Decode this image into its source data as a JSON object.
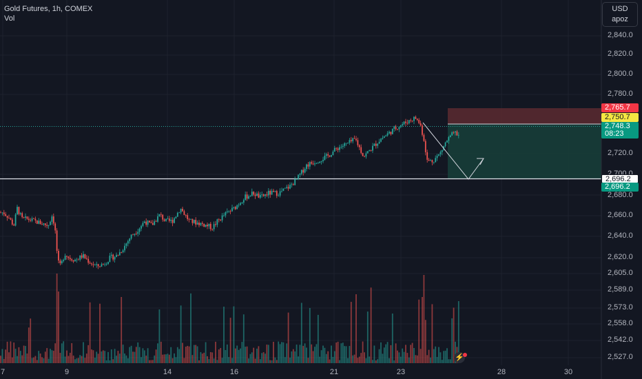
{
  "legend": {
    "symbol_line": "Gold Futures, 1h, COMEX",
    "indicator": "Vol"
  },
  "price_scale": {
    "currency": "USD",
    "unit": "apoz"
  },
  "y_labels": [
    "2,840.0",
    "2,820.0",
    "2,800.0",
    "2,780.0",
    "2,720.0",
    "2,700.0",
    "2,680.0",
    "2,660.0",
    "2,640.0",
    "2,620.0",
    "2,605.0",
    "2,589.0",
    "2,573.0",
    "2,558.0",
    "2,542.0",
    "2,527.0"
  ],
  "x_labels": [
    "7",
    "9",
    "14",
    "16",
    "21",
    "23",
    "28",
    "30"
  ],
  "tags": {
    "stop_loss": "2,765.7",
    "entry": "2,750.7",
    "last_price": "2,748.3",
    "countdown": "08:23",
    "target_line": "2,696.2",
    "target": "2,696.2"
  },
  "colors": {
    "background": "#131722",
    "up": "#26a69a",
    "down": "#ef5350",
    "stop_zone": "#5c2a30",
    "target_zone": "#173f3a",
    "entry_tag": "#f5e642",
    "stop_tag": "#f23645",
    "target_tag": "#089981"
  },
  "icons": {
    "alert": "lightning-icon"
  },
  "chart_data": {
    "type": "candlestick",
    "interval": "1h",
    "ylim": [
      2620,
      2846
    ],
    "y_ticks": [
      2620,
      2640,
      2660,
      2680,
      2700,
      2720,
      2780,
      2800,
      2820,
      2840
    ],
    "last_price": 2748.3,
    "horizontal_line": 2696.2,
    "position": {
      "entry": 2750.7,
      "stop": 2765.7,
      "target": 2696.2
    },
    "price_path": [
      {
        "x": 0,
        "y": 2676
      },
      {
        "x": 5,
        "y": 2676
      },
      {
        "x": 12,
        "y": 2672
      },
      {
        "x": 20,
        "y": 2664
      },
      {
        "x": 25,
        "y": 2680
      },
      {
        "x": 32,
        "y": 2670
      },
      {
        "x": 40,
        "y": 2670
      },
      {
        "x": 50,
        "y": 2668
      },
      {
        "x": 60,
        "y": 2666
      },
      {
        "x": 70,
        "y": 2664
      },
      {
        "x": 76,
        "y": 2674
      },
      {
        "x": 80,
        "y": 2660
      },
      {
        "x": 84,
        "y": 2630
      },
      {
        "x": 88,
        "y": 2626
      },
      {
        "x": 94,
        "y": 2638
      },
      {
        "x": 100,
        "y": 2634
      },
      {
        "x": 110,
        "y": 2632
      },
      {
        "x": 120,
        "y": 2636
      },
      {
        "x": 130,
        "y": 2630
      },
      {
        "x": 140,
        "y": 2626
      },
      {
        "x": 150,
        "y": 2628
      },
      {
        "x": 160,
        "y": 2634
      },
      {
        "x": 170,
        "y": 2636
      },
      {
        "x": 180,
        "y": 2644
      },
      {
        "x": 190,
        "y": 2654
      },
      {
        "x": 200,
        "y": 2660
      },
      {
        "x": 210,
        "y": 2668
      },
      {
        "x": 220,
        "y": 2664
      },
      {
        "x": 232,
        "y": 2674
      },
      {
        "x": 240,
        "y": 2668
      },
      {
        "x": 250,
        "y": 2668
      },
      {
        "x": 262,
        "y": 2680
      },
      {
        "x": 275,
        "y": 2668
      },
      {
        "x": 290,
        "y": 2666
      },
      {
        "x": 300,
        "y": 2664
      },
      {
        "x": 308,
        "y": 2662
      },
      {
        "x": 316,
        "y": 2668
      },
      {
        "x": 326,
        "y": 2674
      },
      {
        "x": 340,
        "y": 2680
      },
      {
        "x": 355,
        "y": 2690
      },
      {
        "x": 368,
        "y": 2694
      },
      {
        "x": 378,
        "y": 2690
      },
      {
        "x": 390,
        "y": 2694
      },
      {
        "x": 405,
        "y": 2694
      },
      {
        "x": 420,
        "y": 2700
      },
      {
        "x": 430,
        "y": 2706
      },
      {
        "x": 445,
        "y": 2720
      },
      {
        "x": 460,
        "y": 2724
      },
      {
        "x": 475,
        "y": 2728
      },
      {
        "x": 490,
        "y": 2736
      },
      {
        "x": 505,
        "y": 2740
      },
      {
        "x": 516,
        "y": 2744
      },
      {
        "x": 522,
        "y": 2736
      },
      {
        "x": 528,
        "y": 2728
      },
      {
        "x": 540,
        "y": 2736
      },
      {
        "x": 552,
        "y": 2744
      },
      {
        "x": 565,
        "y": 2750
      },
      {
        "x": 578,
        "y": 2756
      },
      {
        "x": 590,
        "y": 2760
      },
      {
        "x": 603,
        "y": 2764
      },
      {
        "x": 610,
        "y": 2758
      },
      {
        "x": 616,
        "y": 2742
      },
      {
        "x": 620,
        "y": 2724
      },
      {
        "x": 628,
        "y": 2724
      },
      {
        "x": 638,
        "y": 2730
      },
      {
        "x": 648,
        "y": 2742
      },
      {
        "x": 656,
        "y": 2748
      },
      {
        "x": 662,
        "y": 2750
      },
      {
        "x": 668,
        "y": 2746
      }
    ]
  }
}
